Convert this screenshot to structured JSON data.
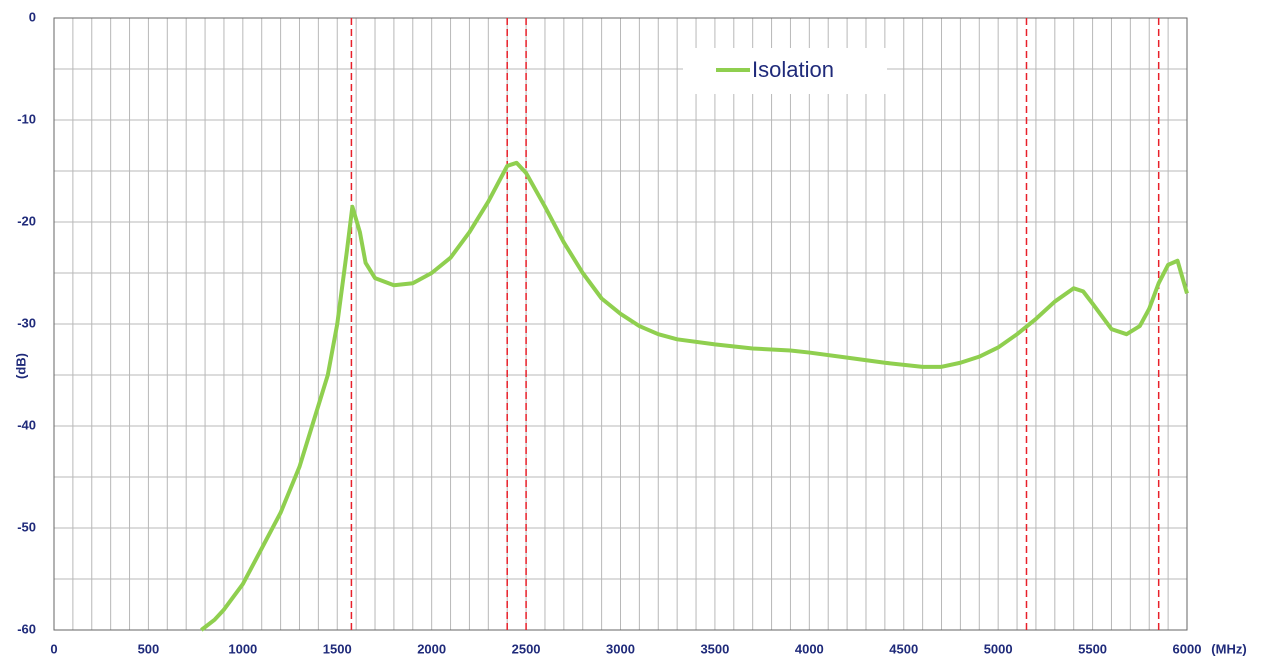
{
  "chart_data": {
    "type": "line",
    "x_label": "(MHz)",
    "y_label": "(dB)",
    "xlim": [
      0,
      6000
    ],
    "ylim": [
      -60,
      0
    ],
    "xticks": [
      0,
      500,
      1000,
      1500,
      2000,
      2500,
      3000,
      3500,
      4000,
      4500,
      5000,
      5500,
      6000
    ],
    "yticks": [
      0,
      -10,
      -20,
      -30,
      -40,
      -50,
      -60
    ],
    "xgrid": [
      0,
      100,
      200,
      300,
      400,
      500,
      600,
      700,
      800,
      900,
      1000,
      1100,
      1200,
      1300,
      1400,
      1500,
      1600,
      1700,
      1800,
      1900,
      2000,
      2100,
      2200,
      2300,
      2400,
      2500,
      2600,
      2700,
      2800,
      2900,
      3000,
      3100,
      3200,
      3300,
      3400,
      3500,
      3600,
      3700,
      3800,
      3900,
      4000,
      4100,
      4200,
      4300,
      4400,
      4500,
      4600,
      4700,
      4800,
      4900,
      5000,
      5100,
      5200,
      5300,
      5400,
      5500,
      5600,
      5700,
      5800,
      5900,
      6000
    ],
    "ygrid": [
      0,
      -5,
      -10,
      -15,
      -20,
      -25,
      -30,
      -35,
      -40,
      -45,
      -50,
      -55,
      -60
    ],
    "grid": true,
    "markers": [
      1575,
      2400,
      2500,
      5150,
      5850
    ],
    "marker_color": "#e8202a",
    "legend": "upper center",
    "series": [
      {
        "name": "Isolation",
        "color": "#8fcf4f",
        "x": [
          780,
          850,
          900,
          1000,
          1100,
          1200,
          1300,
          1400,
          1450,
          1500,
          1550,
          1580,
          1620,
          1650,
          1700,
          1800,
          1900,
          2000,
          2100,
          2200,
          2300,
          2400,
          2450,
          2500,
          2600,
          2700,
          2800,
          2900,
          3000,
          3100,
          3200,
          3300,
          3500,
          3700,
          3900,
          4000,
          4200,
          4400,
          4600,
          4700,
          4800,
          4900,
          5000,
          5100,
          5200,
          5300,
          5400,
          5450,
          5500,
          5600,
          5680,
          5750,
          5800,
          5850,
          5900,
          5950,
          6000
        ],
        "values": [
          -60,
          -59,
          -58,
          -55.5,
          -52,
          -48.5,
          -44,
          -38,
          -35,
          -30,
          -23,
          -18.5,
          -21,
          -24,
          -25.5,
          -26.2,
          -26,
          -25,
          -23.5,
          -21,
          -18,
          -14.5,
          -14.2,
          -15.2,
          -18.5,
          -22,
          -25,
          -27.5,
          -29,
          -30.2,
          -31,
          -31.5,
          -32,
          -32.4,
          -32.6,
          -32.8,
          -33.3,
          -33.8,
          -34.2,
          -34.2,
          -33.8,
          -33.2,
          -32.3,
          -31,
          -29.5,
          -27.8,
          -26.5,
          -26.8,
          -28,
          -30.5,
          -31,
          -30.2,
          -28.5,
          -26,
          -24.2,
          -23.8,
          -27
        ]
      }
    ]
  }
}
